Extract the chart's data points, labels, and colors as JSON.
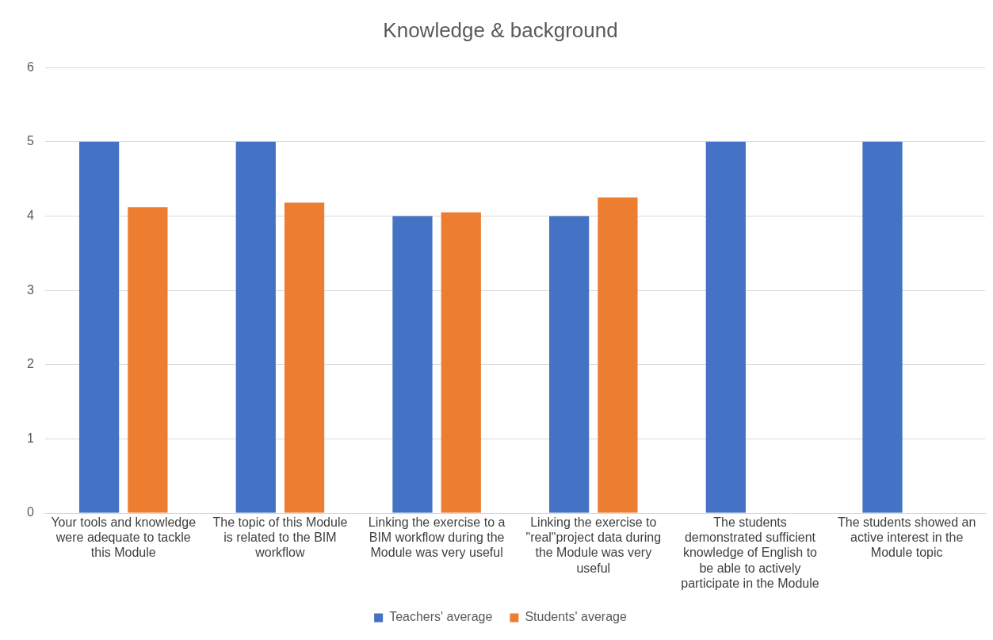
{
  "chart_data": {
    "type": "bar",
    "title": "Knowledge & background",
    "categories": [
      "Your tools and knowledge were adequate to tackle this Module",
      "The topic of this Module is related to the BIM workflow",
      "Linking the exercise to a BIM workflow during the Module was very useful",
      "Linking the exercise to \"real\"project data during the Module was very useful",
      "The students demonstrated sufficient knowledge of English to be able to actively participate in the Module",
      "The students showed an active interest in the Module topic"
    ],
    "series": [
      {
        "name": "Teachers' average",
        "color": "#4472c4",
        "values": [
          5,
          5,
          4,
          4,
          5,
          5
        ]
      },
      {
        "name": "Students' average",
        "color": "#ed7d31",
        "values": [
          4.12,
          4.18,
          4.05,
          4.25,
          null,
          null
        ]
      }
    ],
    "ylim": [
      0,
      6
    ],
    "yticks": [
      0,
      1,
      2,
      3,
      4,
      5,
      6
    ],
    "grid": "y",
    "legend": "bottom"
  }
}
